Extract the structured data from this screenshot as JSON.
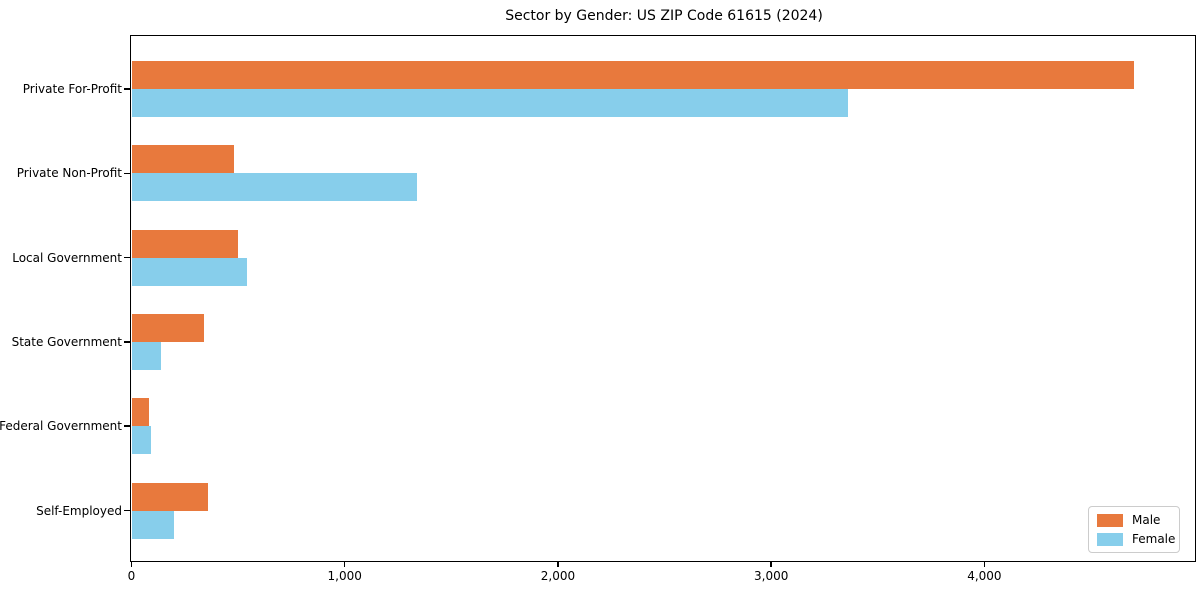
{
  "chart_data": {
    "type": "bar",
    "orientation": "horizontal",
    "title": "Sector by Gender: US ZIP Code 61615 (2024)",
    "categories": [
      "Private For-Profit",
      "Private Non-Profit",
      "Local Government",
      "State Government",
      "Federal Government",
      "Self-Employed"
    ],
    "series": [
      {
        "name": "Male",
        "color": "#e8793d",
        "values": [
          4700,
          480,
          500,
          340,
          80,
          360
        ]
      },
      {
        "name": "Female",
        "color": "#87ceeb",
        "values": [
          3360,
          1340,
          540,
          140,
          90,
          200
        ]
      }
    ],
    "xlabel": "",
    "ylabel": "",
    "xlim": [
      0,
      4990
    ],
    "xticks": [
      {
        "value": 0,
        "label": "0"
      },
      {
        "value": 1000,
        "label": "1,000"
      },
      {
        "value": 2000,
        "label": "2,000"
      },
      {
        "value": 3000,
        "label": "3,000"
      },
      {
        "value": 4000,
        "label": "4,000"
      }
    ],
    "grid": false,
    "legend_position": "lower right",
    "background_color": "#ffffff",
    "spine_color": "#000000",
    "legend_border_color": "#cccccc"
  }
}
